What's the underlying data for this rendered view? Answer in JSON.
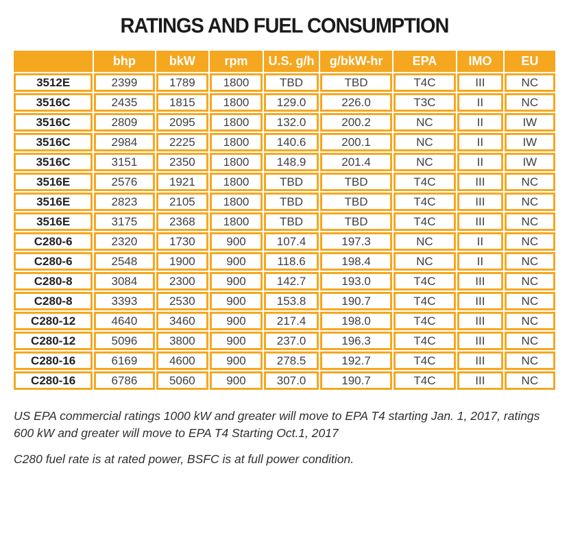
{
  "title": "RATINGS AND FUEL CONSUMPTION",
  "colors": {
    "accent_orange": "#F5A720",
    "header_text": "#FFFFFF",
    "body_text": "#3F3F3F",
    "model_text": "#222222",
    "title_text": "#1B1B1B",
    "note_text": "#2F2F2F",
    "page_bg": "#FFFFFF"
  },
  "chart_data": {
    "type": "table",
    "title": "RATINGS AND FUEL CONSUMPTION",
    "columns": [
      "",
      "bhp",
      "bkW",
      "rpm",
      "U.S. g/h",
      "g/bkW-hr",
      "EPA",
      "IMO",
      "EU"
    ],
    "rows": [
      {
        "model": "3512E",
        "values": [
          "2399",
          "1789",
          "1800",
          "TBD",
          "TBD",
          "T4C",
          "III",
          "NC"
        ]
      },
      {
        "model": "3516C",
        "values": [
          "2435",
          "1815",
          "1800",
          "129.0",
          "226.0",
          "T3C",
          "II",
          "NC"
        ]
      },
      {
        "model": "3516C",
        "values": [
          "2809",
          "2095",
          "1800",
          "132.0",
          "200.2",
          "NC",
          "II",
          "IW"
        ]
      },
      {
        "model": "3516C",
        "values": [
          "2984",
          "2225",
          "1800",
          "140.6",
          "200.1",
          "NC",
          "II",
          "IW"
        ]
      },
      {
        "model": "3516C",
        "values": [
          "3151",
          "2350",
          "1800",
          "148.9",
          "201.4",
          "NC",
          "II",
          "IW"
        ]
      },
      {
        "model": "3516E",
        "values": [
          "2576",
          "1921",
          "1800",
          "TBD",
          "TBD",
          "T4C",
          "III",
          "NC"
        ]
      },
      {
        "model": "3516E",
        "values": [
          "2823",
          "2105",
          "1800",
          "TBD",
          "TBD",
          "T4C",
          "III",
          "NC"
        ]
      },
      {
        "model": "3516E",
        "values": [
          "3175",
          "2368",
          "1800",
          "TBD",
          "TBD",
          "T4C",
          "III",
          "NC"
        ]
      },
      {
        "model": "C280-6",
        "values": [
          "2320",
          "1730",
          "900",
          "107.4",
          "197.3",
          "NC",
          "II",
          "NC"
        ]
      },
      {
        "model": "C280-6",
        "values": [
          "2548",
          "1900",
          "900",
          "118.6",
          "198.4",
          "NC",
          "II",
          "NC"
        ]
      },
      {
        "model": "C280-8",
        "values": [
          "3084",
          "2300",
          "900",
          "142.7",
          "193.0",
          "T4C",
          "III",
          "NC"
        ]
      },
      {
        "model": "C280-8",
        "values": [
          "3393",
          "2530",
          "900",
          "153.8",
          "190.7",
          "T4C",
          "III",
          "NC"
        ]
      },
      {
        "model": "C280-12",
        "values": [
          "4640",
          "3460",
          "900",
          "217.4",
          "198.0",
          "T4C",
          "III",
          "NC"
        ]
      },
      {
        "model": "C280-12",
        "values": [
          "5096",
          "3800",
          "900",
          "237.0",
          "196.3",
          "T4C",
          "III",
          "NC"
        ]
      },
      {
        "model": "C280-16",
        "values": [
          "6169",
          "4600",
          "900",
          "278.5",
          "192.7",
          "T4C",
          "III",
          "NC"
        ]
      },
      {
        "model": "C280-16",
        "values": [
          "6786",
          "5060",
          "900",
          "307.0",
          "190.7",
          "T4C",
          "III",
          "NC"
        ]
      }
    ],
    "column_widths_pct": [
      14.9,
      11.4,
      9.9,
      9.9,
      10.4,
      13.5,
      11.8,
      8.6,
      9.6
    ]
  },
  "notes": [
    "US EPA commercial ratings 1000 kW and greater will move to EPA T4 starting Jan. 1, 2017, ratings 600 kW and greater will move to EPA T4 Starting Oct.1, 2017",
    "C280 fuel rate is at rated power, BSFC is at full power condition."
  ]
}
